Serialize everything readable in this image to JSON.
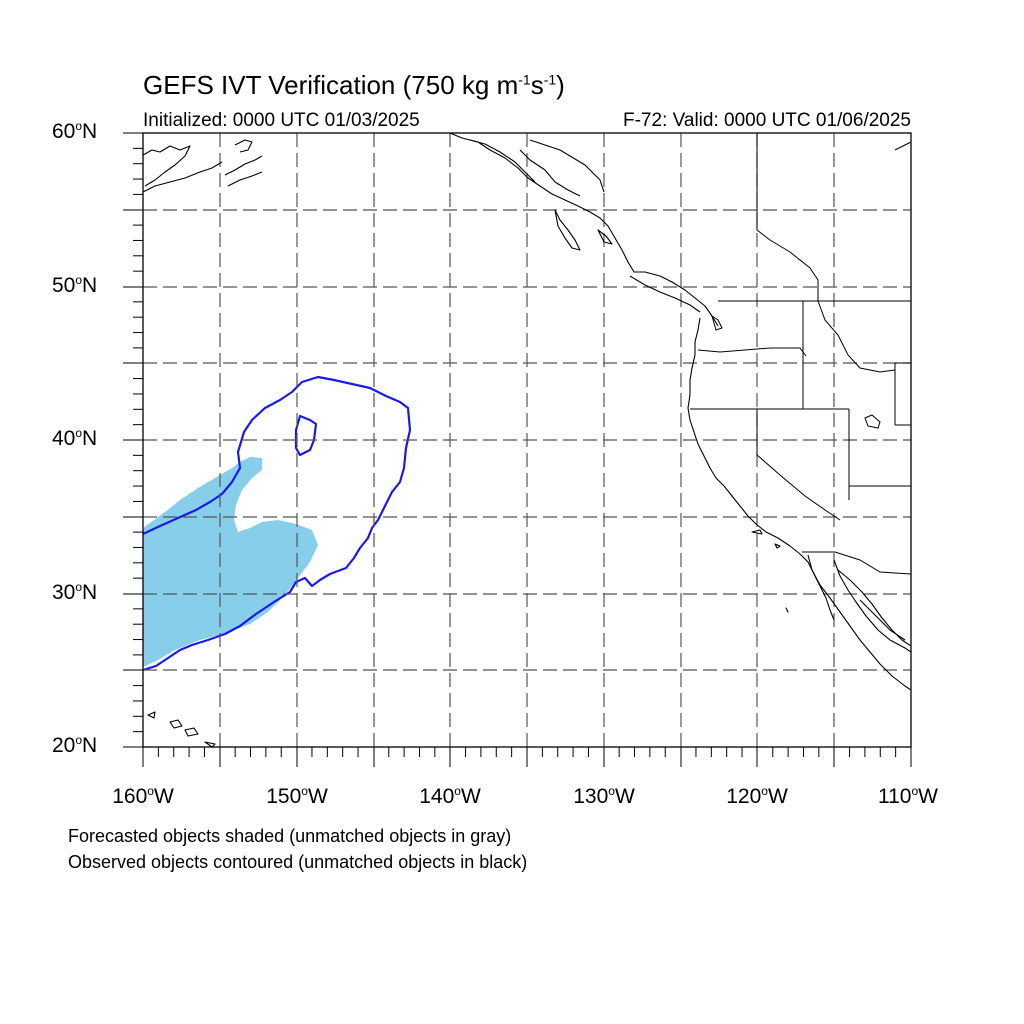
{
  "title": {
    "main": "GEFS IVT Verification (750 kg m",
    "sup1": "-1",
    "mid": "s",
    "sup2": "-1",
    "end": ")"
  },
  "initialized": "Initialized: 0000 UTC 01/03/2025",
  "valid": "F-72: Valid: 0000 UTC 01/06/2025",
  "lat_labels": [
    "60",
    "50",
    "40",
    "30",
    "20"
  ],
  "lat_suffix": "N",
  "lon_labels": [
    "160",
    "150",
    "140",
    "130",
    "120",
    "110"
  ],
  "lon_suffix": "W",
  "deg_symbol": "o",
  "notes": [
    "Forecasted objects shaded (unmatched objects in gray)",
    "Observed objects contoured (unmatched objects in black)"
  ],
  "colors": {
    "forecast_fill": "#87ceeb",
    "observed_contour": "#1a1ae6",
    "coast": "#000000",
    "grid": "#555555"
  },
  "map_extent": {
    "lon": [
      -160,
      -110
    ],
    "lat": [
      20,
      60
    ]
  }
}
